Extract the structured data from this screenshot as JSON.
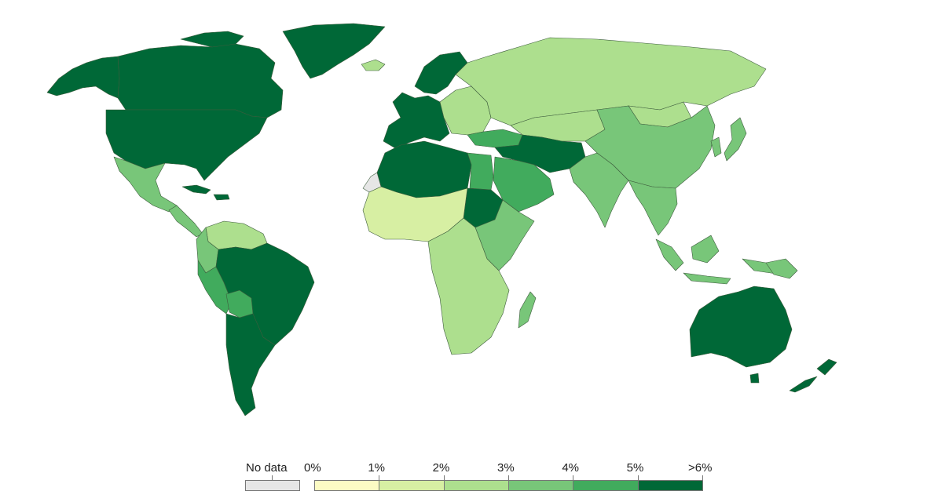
{
  "legend": {
    "no_data_label": "No data",
    "no_data_color": "#e6e6e6",
    "ticks": [
      "0%",
      "1%",
      "2%",
      "3%",
      "4%",
      "5%",
      ">6%"
    ],
    "bins": [
      {
        "range": "0-1%",
        "color": "#fcfbc4"
      },
      {
        "range": "1-2%",
        "color": "#d7efa3"
      },
      {
        "range": "2-3%",
        "color": "#addf8e"
      },
      {
        "range": "3-4%",
        "color": "#78c679"
      },
      {
        "range": "4-5%",
        "color": "#41ab5d"
      },
      {
        "range": ">5%",
        "color": "#006837"
      }
    ]
  },
  "regions": [
    {
      "name": "canada",
      "bin": 5
    },
    {
      "name": "alaska",
      "bin": 5
    },
    {
      "name": "greenland",
      "bin": 5
    },
    {
      "name": "usa",
      "bin": 5
    },
    {
      "name": "mexico",
      "bin": 3
    },
    {
      "name": "central-america",
      "bin": 3
    },
    {
      "name": "caribbean",
      "bin": 5
    },
    {
      "name": "venezuela-guianas",
      "bin": 2
    },
    {
      "name": "colombia",
      "bin": 3
    },
    {
      "name": "peru-ecuador",
      "bin": 4
    },
    {
      "name": "brazil",
      "bin": 5
    },
    {
      "name": "bolivia",
      "bin": 4
    },
    {
      "name": "argentina-chile",
      "bin": 5
    },
    {
      "name": "iceland",
      "bin": 2
    },
    {
      "name": "western-europe",
      "bin": 5
    },
    {
      "name": "scandinavia",
      "bin": 5
    },
    {
      "name": "eastern-europe",
      "bin": 2
    },
    {
      "name": "russia",
      "bin": 2
    },
    {
      "name": "turkey",
      "bin": 4
    },
    {
      "name": "middle-east",
      "bin": 5
    },
    {
      "name": "saudi-arabia",
      "bin": 4
    },
    {
      "name": "central-asia",
      "bin": 2
    },
    {
      "name": "china",
      "bin": 3
    },
    {
      "name": "mongolia",
      "bin": 2
    },
    {
      "name": "india",
      "bin": 3
    },
    {
      "name": "southeast-asia",
      "bin": 3
    },
    {
      "name": "japan-korea",
      "bin": 3
    },
    {
      "name": "indonesia",
      "bin": 3
    },
    {
      "name": "north-africa",
      "bin": 5
    },
    {
      "name": "egypt",
      "bin": 4
    },
    {
      "name": "sudan",
      "bin": 5
    },
    {
      "name": "west-africa",
      "bin": 1
    },
    {
      "name": "western-sahara",
      "bin": -1
    },
    {
      "name": "east-africa",
      "bin": 3
    },
    {
      "name": "central-southern-africa",
      "bin": 2
    },
    {
      "name": "madagascar",
      "bin": 3
    },
    {
      "name": "australia",
      "bin": 5
    },
    {
      "name": "new-zealand",
      "bin": 5
    },
    {
      "name": "papua",
      "bin": 3
    }
  ]
}
